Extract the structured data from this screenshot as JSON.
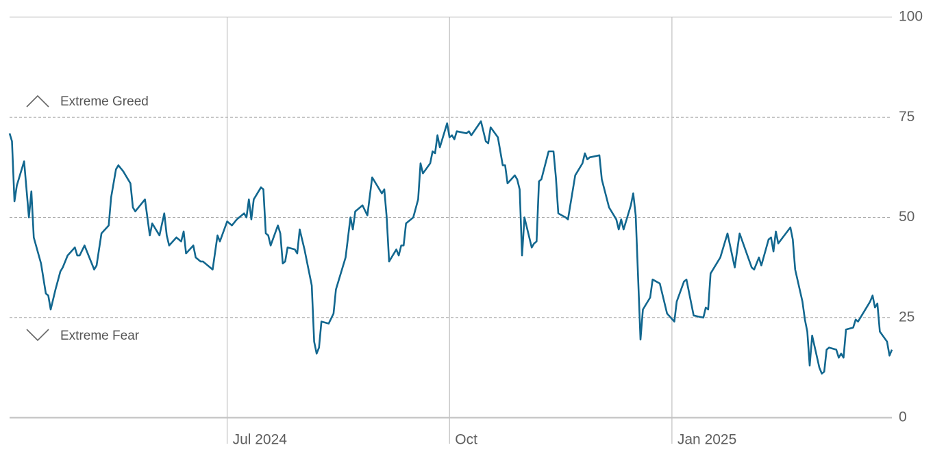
{
  "chart_data": {
    "type": "line",
    "color": "#12678f",
    "annotations": [
      "Extreme Greed",
      "Extreme Fear"
    ],
    "xlim": [
      "2024-04-02",
      "2025-04-02"
    ],
    "xticks": [
      {
        "value": "2024-07-01",
        "label": "Jul 2024"
      },
      {
        "value": "2024-10-01",
        "label": "Oct"
      },
      {
        "value": "2025-01-01",
        "label": "Jan 2025"
      }
    ],
    "ylim": [
      0,
      100
    ],
    "yticks": [
      0,
      25,
      50,
      75,
      100
    ],
    "grid": true,
    "x": [
      "2024-04-02",
      "2024-04-03",
      "2024-04-04",
      "2024-04-05",
      "2024-04-08",
      "2024-04-10",
      "2024-04-11",
      "2024-04-12",
      "2024-04-15",
      "2024-04-17",
      "2024-04-18",
      "2024-04-19",
      "2024-04-21",
      "2024-04-23",
      "2024-04-24",
      "2024-04-26",
      "2024-04-29",
      "2024-04-30",
      "2024-05-01",
      "2024-05-03",
      "2024-05-05",
      "2024-05-07",
      "2024-05-08",
      "2024-05-10",
      "2024-05-13",
      "2024-05-14",
      "2024-05-16",
      "2024-05-17",
      "2024-05-19",
      "2024-05-22",
      "2024-05-23",
      "2024-05-24",
      "2024-05-28",
      "2024-05-30",
      "2024-05-31",
      "2024-06-03",
      "2024-06-05",
      "2024-06-06",
      "2024-06-07",
      "2024-06-10",
      "2024-06-12",
      "2024-06-13",
      "2024-06-14",
      "2024-06-17",
      "2024-06-18",
      "2024-06-20",
      "2024-06-21",
      "2024-06-25",
      "2024-06-27",
      "2024-06-28",
      "2024-07-01",
      "2024-07-03",
      "2024-07-05",
      "2024-07-08",
      "2024-07-09",
      "2024-07-10",
      "2024-07-11",
      "2024-07-12",
      "2024-07-15",
      "2024-07-16",
      "2024-07-17",
      "2024-07-18",
      "2024-07-19",
      "2024-07-22",
      "2024-07-23",
      "2024-07-24",
      "2024-07-25",
      "2024-07-26",
      "2024-07-29",
      "2024-07-30",
      "2024-07-31",
      "2024-08-02",
      "2024-08-05",
      "2024-08-06",
      "2024-08-07",
      "2024-08-08",
      "2024-08-09",
      "2024-08-12",
      "2024-08-14",
      "2024-08-15",
      "2024-08-16",
      "2024-08-19",
      "2024-08-21",
      "2024-08-22",
      "2024-08-23",
      "2024-08-26",
      "2024-08-28",
      "2024-08-30",
      "2024-09-03",
      "2024-09-04",
      "2024-09-05",
      "2024-09-06",
      "2024-09-09",
      "2024-09-10",
      "2024-09-11",
      "2024-09-12",
      "2024-09-13",
      "2024-09-16",
      "2024-09-18",
      "2024-09-19",
      "2024-09-20",
      "2024-09-23",
      "2024-09-24",
      "2024-09-25",
      "2024-09-26",
      "2024-09-27",
      "2024-09-30",
      "2024-10-01",
      "2024-10-02",
      "2024-10-03",
      "2024-10-04",
      "2024-10-08",
      "2024-10-09",
      "2024-10-10",
      "2024-10-14",
      "2024-10-16",
      "2024-10-17",
      "2024-10-18",
      "2024-10-21",
      "2024-10-23",
      "2024-10-24",
      "2024-10-25",
      "2024-10-28",
      "2024-10-29",
      "2024-10-30",
      "2024-10-31",
      "2024-11-01",
      "2024-11-04",
      "2024-11-05",
      "2024-11-06",
      "2024-11-07",
      "2024-11-08",
      "2024-11-11",
      "2024-11-13",
      "2024-11-14",
      "2024-11-15",
      "2024-11-18",
      "2024-11-19",
      "2024-11-22",
      "2024-11-25",
      "2024-11-26",
      "2024-11-27",
      "2024-11-28",
      "2024-12-02",
      "2024-12-03",
      "2024-12-06",
      "2024-12-09",
      "2024-12-10",
      "2024-12-11",
      "2024-12-12",
      "2024-12-15",
      "2024-12-16",
      "2024-12-17",
      "2024-12-19",
      "2024-12-20",
      "2024-12-23",
      "2024-12-24",
      "2024-12-27",
      "2024-12-30",
      "2025-01-02",
      "2025-01-03",
      "2025-01-06",
      "2025-01-07",
      "2025-01-10",
      "2025-01-14",
      "2025-01-15",
      "2025-01-16",
      "2025-01-17",
      "2025-01-21",
      "2025-01-24",
      "2025-01-27",
      "2025-01-29",
      "2025-02-03",
      "2025-02-04",
      "2025-02-06",
      "2025-02-07",
      "2025-02-10",
      "2025-02-11",
      "2025-02-12",
      "2025-02-13",
      "2025-02-14",
      "2025-02-19",
      "2025-02-20",
      "2025-02-21",
      "2025-02-24",
      "2025-02-25",
      "2025-02-26",
      "2025-02-27",
      "2025-02-28",
      "2025-03-03",
      "2025-03-04",
      "2025-03-05",
      "2025-03-06",
      "2025-03-07",
      "2025-03-10",
      "2025-03-11",
      "2025-03-12",
      "2025-03-13",
      "2025-03-14",
      "2025-03-17",
      "2025-03-18",
      "2025-03-19",
      "2025-03-24",
      "2025-03-25",
      "2025-03-26",
      "2025-03-27",
      "2025-03-28",
      "2025-03-31",
      "2025-04-01",
      "2025-04-02"
    ],
    "values": [
      71,
      69,
      54,
      58,
      64,
      50,
      56.5,
      45,
      38.5,
      31,
      30.5,
      27,
      32,
      36.5,
      37.5,
      40.5,
      42.5,
      40.5,
      40.5,
      43,
      40,
      37,
      38,
      46,
      48,
      55,
      62,
      63,
      61.5,
      58.5,
      52.5,
      51.5,
      54.5,
      45.5,
      48.5,
      45.5,
      51,
      45.5,
      43,
      45,
      44,
      46.5,
      41,
      43,
      40,
      39,
      39,
      37,
      45.5,
      44,
      49,
      48,
      49.5,
      51,
      50,
      54.5,
      49.5,
      54.5,
      57.5,
      57,
      46,
      45.5,
      43,
      48,
      46,
      38.5,
      39,
      42.5,
      42,
      41,
      47,
      42,
      33,
      19,
      16,
      17.5,
      24,
      23.5,
      26,
      32,
      34,
      40,
      50,
      47,
      51.5,
      53,
      50.5,
      60,
      56,
      57,
      50,
      39,
      42,
      40.5,
      43,
      43,
      48.5,
      50,
      54.5,
      63.5,
      61,
      63.5,
      66.5,
      66,
      70.5,
      67.5,
      73.5,
      70,
      70.5,
      69.5,
      71.5,
      71,
      71.5,
      70.5,
      74,
      69,
      68.5,
      72.5,
      70,
      63,
      63,
      58.5,
      60.5,
      59.5,
      57,
      40.5,
      50,
      42.5,
      43.5,
      44,
      59,
      59.5,
      66.5,
      66.5,
      60,
      51,
      50,
      49.5,
      60.5,
      63.5,
      66,
      64.5,
      65,
      65.5,
      59.5,
      52.5,
      49.5,
      47,
      49.5,
      47,
      53,
      56,
      50.5,
      19.5,
      27,
      30,
      34.5,
      33.5,
      26,
      24,
      29,
      34,
      34.5,
      25.5,
      25,
      27.5,
      27,
      36,
      40,
      46,
      37.5,
      46,
      37.5,
      37,
      40,
      38,
      44.5,
      45,
      41.5,
      46.5,
      43.5,
      47.5,
      44.5,
      37,
      29,
      24.5,
      21.5,
      13,
      20.5,
      12.5,
      11,
      11.5,
      17,
      17.5,
      17,
      15,
      16,
      15,
      22,
      22.5,
      24.5,
      24,
      29,
      30.5,
      27.5,
      28.5,
      21.5,
      19,
      15.5,
      17
    ]
  }
}
